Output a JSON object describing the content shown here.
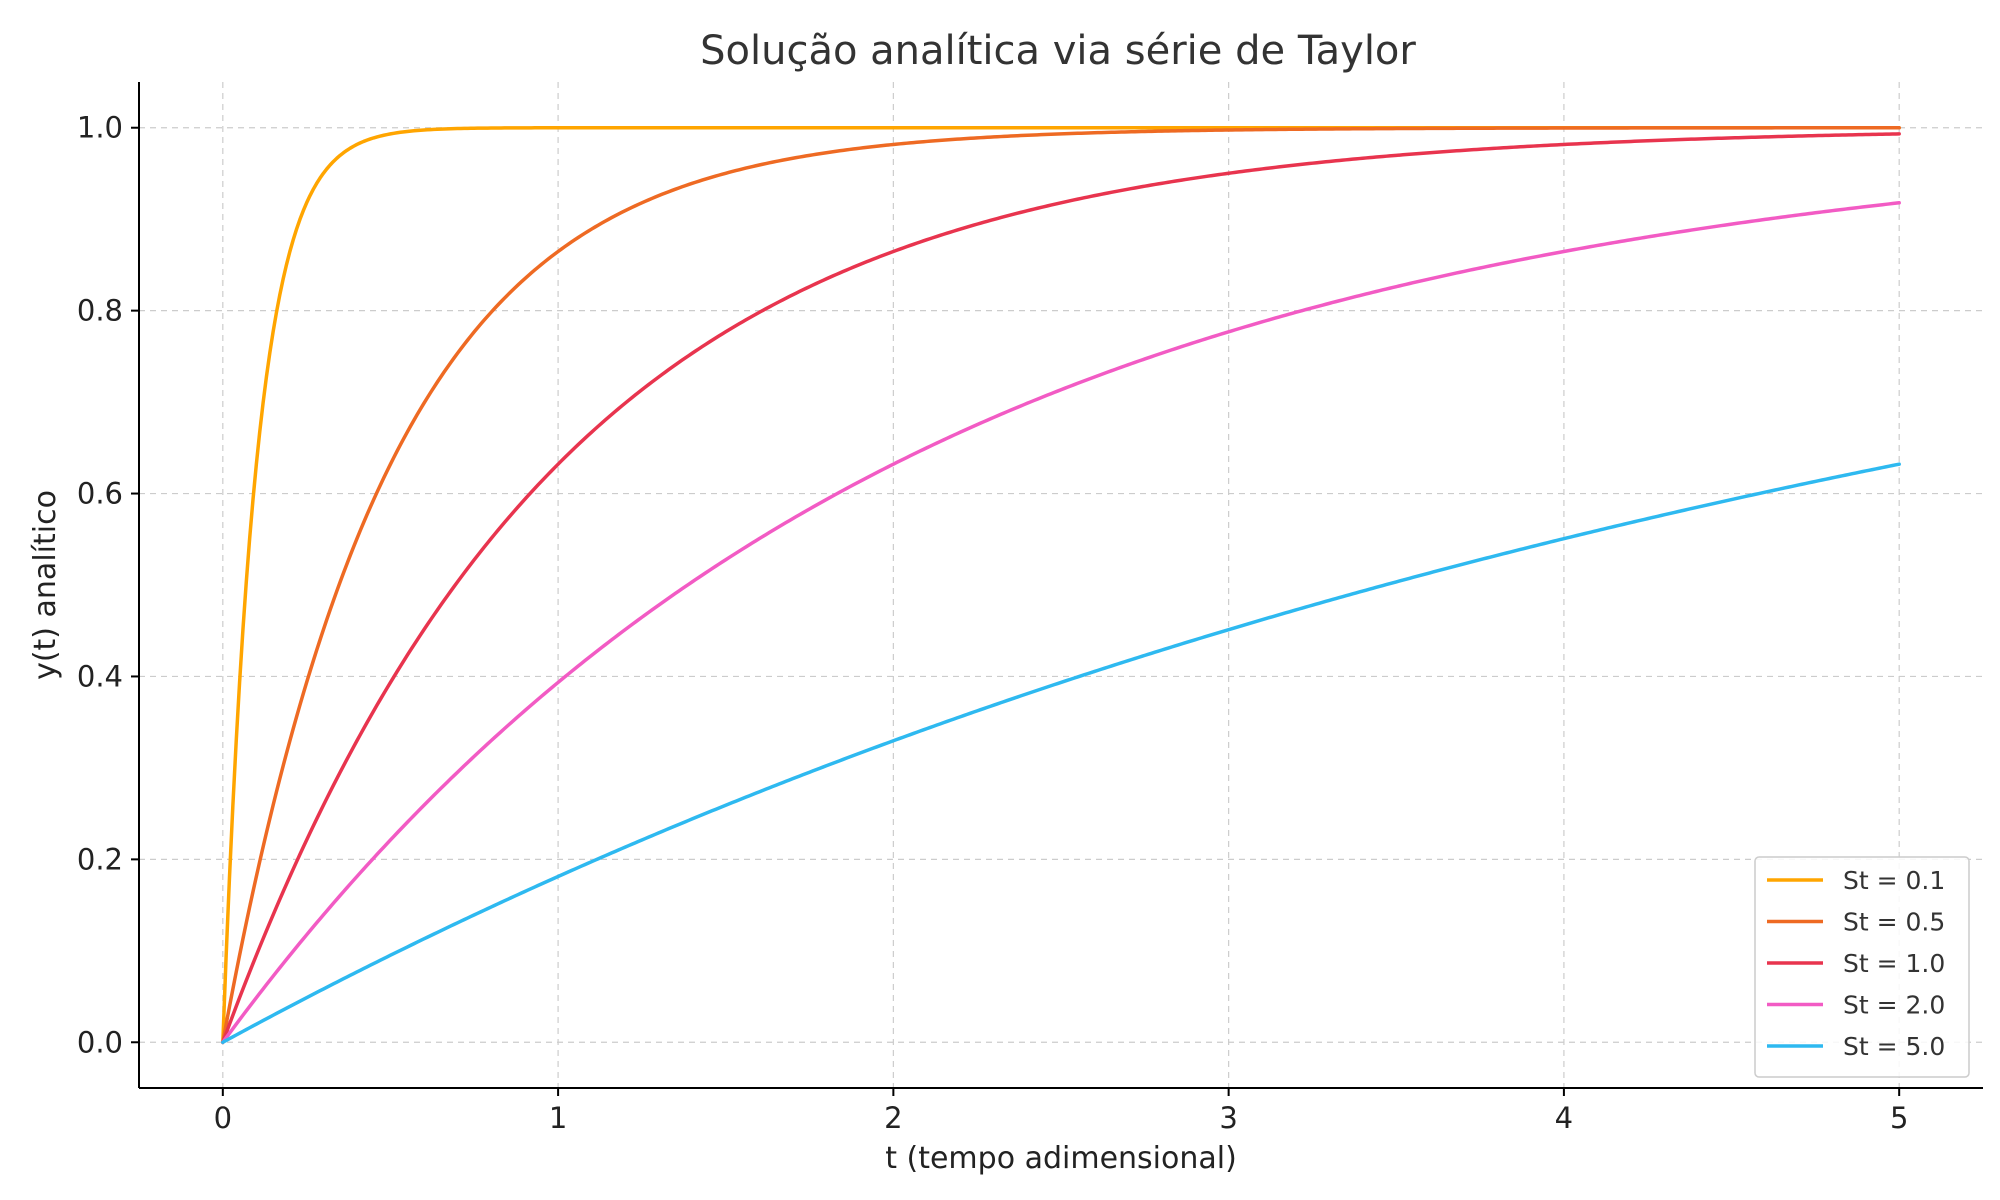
{
  "chart_data": {
    "type": "line",
    "title": "Solução analítica via série de Taylor",
    "xlabel": "t (tempo adimensional)",
    "ylabel": "y(t) analítico",
    "xlim": [
      -0.25,
      5.25
    ],
    "ylim": [
      -0.05,
      1.05
    ],
    "xticks": [
      0,
      1,
      2,
      3,
      4,
      5
    ],
    "yticks": [
      0.0,
      0.2,
      0.4,
      0.6,
      0.8,
      1.0
    ],
    "xtick_labels": [
      "0",
      "1",
      "2",
      "3",
      "4",
      "5"
    ],
    "ytick_labels": [
      "0.0",
      "0.2",
      "0.4",
      "0.6",
      "0.8",
      "1.0"
    ],
    "grid": true,
    "legend_position": "bottom-right",
    "series": [
      {
        "name": "St = 0.1",
        "color": "#FFA500",
        "St": 0.1,
        "x": [
          0,
          0.025,
          0.05,
          0.075,
          0.1,
          0.125,
          0.15,
          0.2,
          0.25,
          0.3,
          0.35,
          0.4,
          0.5,
          0.6,
          0.8,
          1.0,
          2.0,
          3.0,
          4.0,
          5.0
        ],
        "y": [
          0.0,
          0.221,
          0.393,
          0.528,
          0.632,
          0.713,
          0.777,
          0.865,
          0.918,
          0.95,
          0.97,
          0.982,
          0.993,
          0.998,
          1.0,
          1.0,
          1.0,
          1.0,
          1.0,
          1.0
        ]
      },
      {
        "name": "St = 0.5",
        "color": "#EE6A23",
        "St": 0.5,
        "x": [
          0,
          0.1,
          0.2,
          0.3,
          0.4,
          0.5,
          0.6,
          0.8,
          1.0,
          1.25,
          1.5,
          1.75,
          2.0,
          2.5,
          3.0,
          3.5,
          4.0,
          4.5,
          5.0
        ],
        "y": [
          0.0,
          0.181,
          0.33,
          0.451,
          0.551,
          0.632,
          0.699,
          0.798,
          0.865,
          0.918,
          0.95,
          0.97,
          0.982,
          0.993,
          0.998,
          0.999,
          1.0,
          1.0,
          1.0
        ]
      },
      {
        "name": "St = 1.0",
        "color": "#E8344E",
        "St": 1.0,
        "x": [
          0,
          0.2,
          0.4,
          0.6,
          0.8,
          1.0,
          1.25,
          1.5,
          1.75,
          2.0,
          2.5,
          3.0,
          3.5,
          4.0,
          4.5,
          5.0
        ],
        "y": [
          0.0,
          0.181,
          0.33,
          0.451,
          0.551,
          0.632,
          0.713,
          0.777,
          0.826,
          0.865,
          0.918,
          0.95,
          0.97,
          0.982,
          0.989,
          0.993
        ]
      },
      {
        "name": "St = 2.0",
        "color": "#F25BC4",
        "St": 2.0,
        "x": [
          0,
          0.25,
          0.5,
          0.75,
          1.0,
          1.5,
          2.0,
          2.5,
          3.0,
          3.5,
          4.0,
          4.5,
          5.0
        ],
        "y": [
          0.0,
          0.118,
          0.221,
          0.313,
          0.393,
          0.528,
          0.632,
          0.713,
          0.777,
          0.826,
          0.865,
          0.895,
          0.918
        ]
      },
      {
        "name": "St = 5.0",
        "color": "#2EB9F0",
        "St": 5.0,
        "x": [
          0,
          0.5,
          1.0,
          1.5,
          2.0,
          2.5,
          3.0,
          3.5,
          4.0,
          4.5,
          5.0
        ],
        "y": [
          0.0,
          0.095,
          0.181,
          0.259,
          0.33,
          0.393,
          0.451,
          0.503,
          0.551,
          0.593,
          0.632
        ]
      }
    ]
  }
}
